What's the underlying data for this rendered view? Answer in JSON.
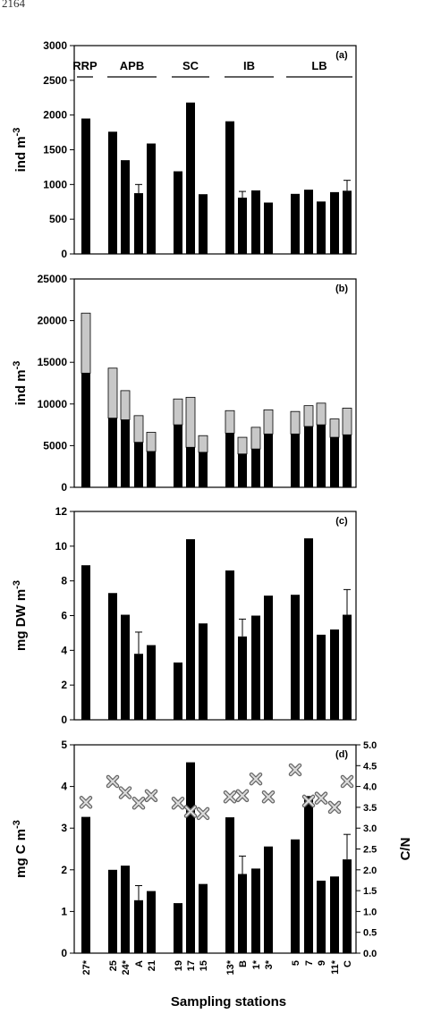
{
  "page_number": "2164",
  "x_axis": {
    "title": "Sampling stations",
    "stations": [
      "27*",
      "25",
      "24*",
      "A",
      "21",
      "19",
      "17",
      "15",
      "13*",
      "B",
      "1*",
      "3*",
      "5",
      "7",
      "9",
      "11*",
      "C"
    ],
    "groups": [
      {
        "name": "RRP",
        "stations": [
          "27*"
        ]
      },
      {
        "name": "APB",
        "stations": [
          "25",
          "24*",
          "A",
          "21"
        ]
      },
      {
        "name": "SC",
        "stations": [
          "19",
          "17",
          "15"
        ]
      },
      {
        "name": "IB",
        "stations": [
          "13*",
          "B",
          "1*",
          "3*"
        ]
      },
      {
        "name": "LB",
        "stations": [
          "5",
          "7",
          "9",
          "11*",
          "C"
        ]
      }
    ]
  },
  "colors": {
    "primary_bar": "#000000",
    "secondary_bar": "#c8c8c8",
    "cn_marker": "#9a9a9a"
  },
  "chart_data": [
    {
      "panel": "(a)",
      "type": "bar",
      "ylabel": "ind m-3",
      "ylim": [
        0,
        3000
      ],
      "yticks": [
        0,
        500,
        1000,
        1500,
        2000,
        2500,
        3000
      ],
      "series": [
        {
          "values": [
            1950,
            1760,
            1350,
            875,
            1590,
            1190,
            2180,
            860,
            1910,
            810,
            915,
            740,
            865,
            925,
            755,
            890,
            910
          ]
        }
      ],
      "error_bars": [
        {
          "station": "A",
          "upper": 1000
        },
        {
          "station": "B",
          "upper": 900
        },
        {
          "station": "C",
          "upper": 1060
        }
      ],
      "grid": false
    },
    {
      "panel": "(b)",
      "type": "bar",
      "stacked": true,
      "ylabel": "ind m-3",
      "ylim": [
        0,
        25000
      ],
      "yticks": [
        0,
        5000,
        10000,
        15000,
        20000,
        25000
      ],
      "series": [
        {
          "values": [
            13700,
            8300,
            8100,
            5400,
            4300,
            7500,
            4800,
            4200,
            6500,
            4000,
            4600,
            6400,
            6400,
            7300,
            7500,
            6000,
            6300
          ]
        },
        {
          "values": [
            7200,
            6000,
            3500,
            3200,
            2300,
            3100,
            6000,
            2000,
            2700,
            2000,
            2600,
            2900,
            2700,
            2500,
            2600,
            2200,
            3200
          ]
        }
      ],
      "grid": false
    },
    {
      "panel": "(c)",
      "type": "bar",
      "ylabel": "mg DW m-3",
      "ylim": [
        0,
        12
      ],
      "yticks": [
        0,
        2,
        4,
        6,
        8,
        10,
        12
      ],
      "series": [
        {
          "values": [
            8.9,
            7.3,
            6.05,
            3.8,
            4.3,
            3.3,
            10.4,
            5.55,
            8.6,
            4.8,
            6.0,
            7.15,
            7.2,
            10.45,
            4.9,
            5.2,
            6.05
          ]
        }
      ],
      "error_bars": [
        {
          "station": "A",
          "upper": 5.05
        },
        {
          "station": "B",
          "upper": 5.8
        },
        {
          "station": "C",
          "upper": 7.5
        }
      ],
      "grid": false
    },
    {
      "panel": "(d)",
      "type": "bar",
      "ylabel": "mg C m-3",
      "ylim": [
        0,
        5
      ],
      "yticks": [
        0,
        1,
        2,
        3,
        4,
        5
      ],
      "y2label": "C/N",
      "y2lim": [
        0,
        5
      ],
      "y2ticks": [
        "0.0",
        "0.5",
        "1.0",
        "1.5",
        "2.0",
        "2.5",
        "3.0",
        "3.5",
        "4.0",
        "4.5",
        "5.0"
      ],
      "series": [
        {
          "values": [
            3.27,
            2.0,
            2.1,
            1.27,
            1.49,
            1.2,
            4.58,
            1.66,
            3.26,
            1.9,
            2.03,
            2.56,
            2.73,
            3.77,
            1.74,
            1.84,
            2.25
          ]
        },
        {
          "axis": "y2",
          "marker": "x",
          "values": [
            3.62,
            4.12,
            3.85,
            3.6,
            3.78,
            3.6,
            3.4,
            3.35,
            3.75,
            3.78,
            4.18,
            3.75,
            4.4,
            3.65,
            3.72,
            3.5,
            4.12
          ]
        }
      ],
      "error_bars": [
        {
          "station": "A",
          "upper": 1.62
        },
        {
          "station": "B",
          "upper": 2.33
        },
        {
          "station": "C",
          "upper": 2.85
        }
      ],
      "grid": false
    }
  ]
}
